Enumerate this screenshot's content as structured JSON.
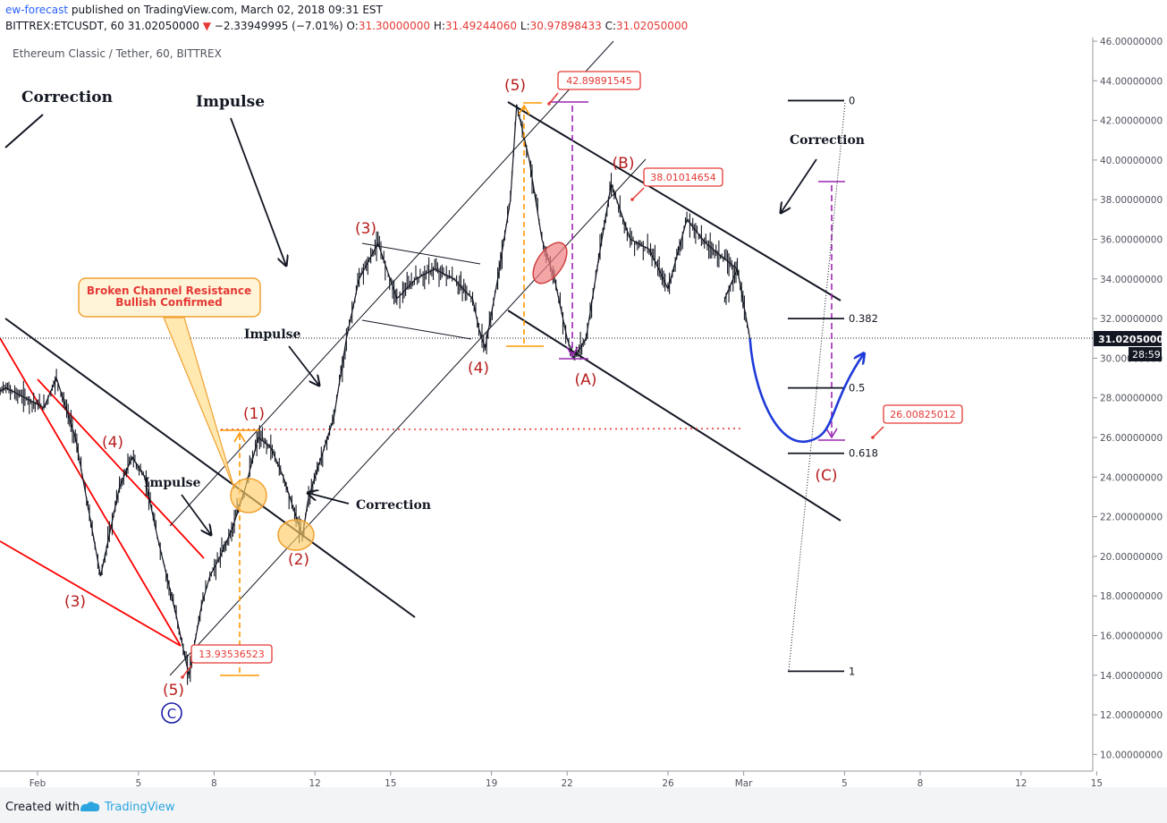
{
  "header": {
    "author": "ew-forecast",
    "published": "published on TradingView.com, March 02, 2018 09:31 EST",
    "symbol": "BITTREX:ETCUSDT, 60",
    "last": "31.02050000",
    "change_arrow": "▼",
    "change": "−2.33949995 (−7.01%)",
    "o_label": "O:",
    "o": "31.30000000",
    "h_label": "H:",
    "h": "31.49244060",
    "l_label": "L:",
    "l": "30.97898433",
    "c_label": "C:",
    "c": "31.02050000"
  },
  "chart_data": {
    "type": "line",
    "title": "Ethereum Classic / Tether, 60, BITTREX",
    "y_ticks": [
      "46.00000000",
      "44.00000000",
      "42.00000000",
      "40.00000000",
      "38.00000000",
      "36.00000000",
      "34.00000000",
      "32.00000000",
      "30.00000000",
      "28.00000000",
      "26.00000000",
      "24.00000000",
      "22.00000000",
      "20.00000000",
      "18.00000000",
      "16.00000000",
      "14.00000000",
      "12.00000000",
      "10.00000000"
    ],
    "x_ticks": [
      "Feb",
      "5",
      "8",
      "12",
      "15",
      "19",
      "22",
      "26",
      "Mar",
      "5",
      "8",
      "12",
      "15"
    ],
    "ylim": [
      9.5,
      46.5
    ],
    "current_price_label": "31.02050000",
    "countdown_label": "28:59",
    "series": [
      {
        "x": [
          "Jan 31 00:00",
          "Jan 31 18:00",
          "Feb 1 06:00",
          "Feb 1 18:00",
          "Feb 2 12:00",
          "Feb 3 12:00",
          "Feb 4 06:00",
          "Feb 4 18:00",
          "Feb 5 06:00",
          "Feb 5 18:00",
          "Feb 6 12:00",
          "Feb 7 00:00",
          "Feb 7 12:00",
          "Feb 7 20:00",
          "Feb 8 06:00",
          "Feb 8 18:00",
          "Feb 9 06:00",
          "Feb 9 18:00",
          "Feb 10 06:00",
          "Feb 10 18:00",
          "Feb 11 06:00",
          "Feb 11 12:00",
          "Feb 11 18:00",
          "Feb 12 06:00",
          "Feb 12 18:00",
          "Feb 13 06:00",
          "Feb 13 18:00",
          "Feb 14 12:00",
          "Feb 15 06:00",
          "Feb 16 00:00",
          "Feb 16 18:00",
          "Feb 17 12:00",
          "Feb 18 06:00",
          "Feb 18 12:00",
          "Feb 18 18:00",
          "Feb 19 06:00",
          "Feb 19 18:00",
          "Feb 20 00:00",
          "Feb 20 12:00",
          "Feb 21 00:00",
          "Feb 21 12:00",
          "Feb 22 00:00",
          "Feb 22 06:00",
          "Feb 22 18:00",
          "Feb 23 06:00",
          "Feb 23 18:00",
          "Feb 24 12:00",
          "Feb 25 06:00",
          "Feb 26 00:00",
          "Feb 26 18:00",
          "Feb 27 12:00",
          "Feb 28 06:00",
          "Feb 28 18:00",
          "Mar 1 06:00",
          "Mar 1 18:00",
          "Mar 2 06:00"
        ],
        "y": [
          28,
          28.5,
          27.5,
          29,
          26,
          19,
          23.5,
          25,
          24,
          21,
          17,
          14,
          17.5,
          19,
          20,
          21.5,
          23.5,
          26,
          25.5,
          24,
          22,
          21,
          23,
          25,
          27,
          31,
          34,
          35.8,
          33,
          34,
          34.5,
          34,
          33,
          31.5,
          30.5,
          34,
          38,
          42.8,
          40,
          36,
          34,
          31,
          30,
          31,
          35,
          38.8,
          36,
          35.5,
          33.5,
          37,
          35.8,
          35,
          34.5,
          33,
          34.5,
          31
        ]
      }
    ],
    "waves": [
      "(1)",
      "(2)",
      "(3)",
      "(4)",
      "(5)",
      "(3)",
      "(4)",
      "(5)",
      "(A)",
      "(B)",
      "(C)",
      "Ⓒ"
    ],
    "annotations": [
      "Correction",
      "Impulse",
      "Impulse",
      "Impulse",
      "Correction",
      "Correction",
      "Broken Channel Resistance",
      "Bullish Confirmed"
    ],
    "price_callouts": [
      "42.89891545",
      "38.01014654",
      "13.93536523",
      "26.00825012"
    ],
    "fib_levels": [
      {
        "label": "0",
        "value": 43
      },
      {
        "label": "0.382",
        "value": 32
      },
      {
        "label": "0.5",
        "value": 28.5
      },
      {
        "label": "0.618",
        "value": 25.2
      },
      {
        "label": "1",
        "value": 14.2
      }
    ],
    "projection": [
      {
        "x": "Mar 2 06:00",
        "y": 31
      },
      {
        "x": "Mar 3 12:00",
        "y": 26
      },
      {
        "x": "Mar 4 12:00",
        "y": 25.8
      },
      {
        "x": "Mar 5 12:00",
        "y": 28
      },
      {
        "x": "Mar 6 18:00",
        "y": 30.2
      }
    ],
    "colors": {
      "candles": "#131722",
      "wave_label": "#b71c1c",
      "callout": "#e53935",
      "projection": "#1e3ad8",
      "fib_bar": "#9c27b0",
      "orange": "#ff9800",
      "channel_red": "#ff0000"
    }
  },
  "footer": {
    "created_with": "Created with",
    "brand": "TradingView"
  }
}
